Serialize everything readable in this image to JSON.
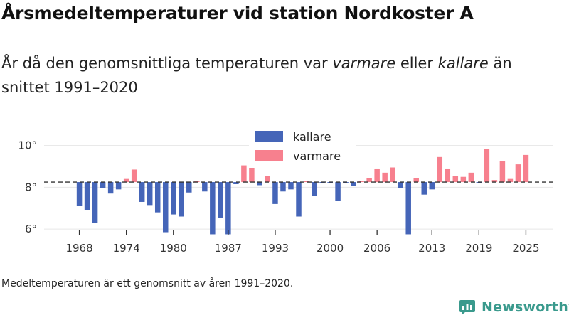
{
  "title": "Årsmedeltemperaturer vid station Nordkoster A",
  "subtitle": {
    "pre": "År då den genomsnittliga temperaturen var ",
    "warm_word": "varmare",
    "mid": " eller ",
    "cold_word": "kallare",
    "post": " än snittet 1991–2020"
  },
  "note": "Medeltemperaturen är ett genomsnitt av åren 1991–2020.",
  "brand": {
    "name": "Newsworthy",
    "icon": "newsworthy-logo-icon"
  },
  "colors": {
    "colder": "#4565b8",
    "warmer": "#f7808e",
    "axis": "#333333",
    "grid": "#e6e6e6",
    "brand": "#3a9a8d"
  },
  "chart_data": {
    "type": "bar",
    "baseline": 8.25,
    "ylim": [
      5.8,
      10.5
    ],
    "yticks": [
      6,
      8,
      10
    ],
    "ytick_labels": [
      "6°",
      "8°",
      "10°"
    ],
    "xlim": [
      1963.5,
      2028.5
    ],
    "xticks": [
      1968,
      1974,
      1980,
      1987,
      1993,
      2000,
      2006,
      2013,
      2019,
      2025
    ],
    "xtick_labels": [
      "1968",
      "1974",
      "1980",
      "1987",
      "1993",
      "2000",
      "2006",
      "2013",
      "2019",
      "2025"
    ],
    "legend": {
      "position": "top-center",
      "colder_label": "kallare",
      "warmer_label": "varmare"
    },
    "years": [
      1968,
      1969,
      1970,
      1971,
      1972,
      1973,
      1974,
      1975,
      1976,
      1977,
      1978,
      1979,
      1980,
      1981,
      1982,
      1983,
      1984,
      1985,
      1986,
      1987,
      1988,
      1989,
      1990,
      1991,
      1992,
      1993,
      1994,
      1995,
      1996,
      1997,
      1998,
      1999,
      2000,
      2001,
      2002,
      2003,
      2004,
      2005,
      2006,
      2007,
      2008,
      2009,
      2010,
      2011,
      2012,
      2013,
      2014,
      2015,
      2016,
      2017,
      2018,
      2019,
      2020,
      2021,
      2022,
      2023,
      2024,
      2025
    ],
    "values": [
      7.1,
      6.9,
      6.3,
      7.95,
      7.7,
      7.9,
      8.4,
      8.85,
      7.3,
      7.15,
      6.8,
      5.85,
      6.7,
      6.6,
      7.75,
      8.3,
      7.8,
      5.75,
      6.55,
      5.75,
      8.15,
      9.05,
      9.15,
      8.1,
      8.55,
      7.2,
      7.8,
      7.9,
      6.6,
      8.3,
      7.6,
      8.2,
      8.2,
      7.35,
      8.2,
      8.05,
      8.3,
      8.45,
      8.9,
      8.7,
      8.95,
      7.95,
      5.75,
      8.45,
      7.65,
      7.9,
      9.45,
      8.9,
      8.55,
      8.5,
      8.7,
      8.2,
      9.85,
      8.35,
      9.25,
      8.4,
      9.1,
      9.55
    ]
  }
}
